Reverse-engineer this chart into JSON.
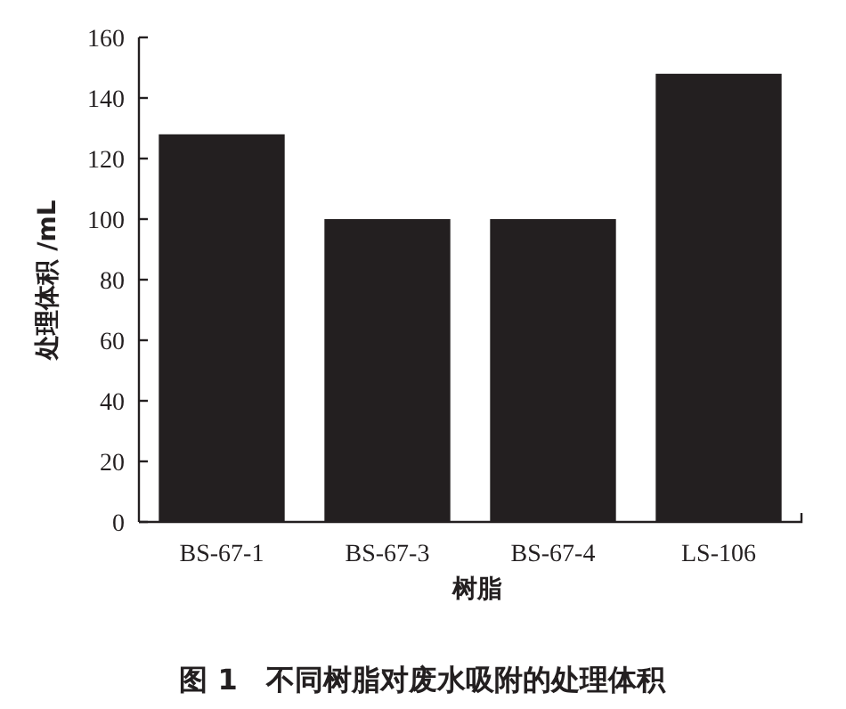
{
  "chart_data": {
    "type": "bar",
    "title": "图 1　不同树脂对废水吸附的处理体积",
    "xlabel": "树脂",
    "ylabel": "处理体积 /mL",
    "categories": [
      "BS-67-1",
      "BS-67-3",
      "BS-67-4",
      "LS-106"
    ],
    "values": [
      128,
      100,
      100,
      148
    ],
    "color": "#231f20",
    "ylim": [
      0,
      160
    ],
    "yticks": [
      0,
      20,
      40,
      60,
      80,
      100,
      120,
      140,
      160
    ],
    "grid": false
  }
}
